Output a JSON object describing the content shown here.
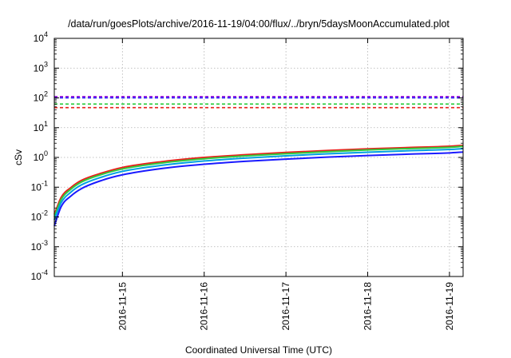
{
  "chart_data": {
    "type": "line",
    "title": "/data/run/goesPlots/archive/2016-11-19/04:00/flux/../bryn/5daysMoonAccumulated.plot",
    "xlabel": "Coordinated Universal Time (UTC)",
    "ylabel": "cSv",
    "y_scale": "log",
    "ylim": [
      0.0001,
      10000
    ],
    "xlim": [
      "2016-11-14T04:00",
      "2016-11-19T04:00"
    ],
    "grid": true,
    "y_ticks": [
      {
        "value": 0.0001,
        "base": "10",
        "exp": "-4"
      },
      {
        "value": 0.001,
        "base": "10",
        "exp": "-3"
      },
      {
        "value": 0.01,
        "base": "10",
        "exp": "-2"
      },
      {
        "value": 0.1,
        "base": "10",
        "exp": "-1"
      },
      {
        "value": 1,
        "base": "10",
        "exp": "0"
      },
      {
        "value": 10,
        "base": "10",
        "exp": "1"
      },
      {
        "value": 100,
        "base": "10",
        "exp": "2"
      },
      {
        "value": 1000,
        "base": "10",
        "exp": "3"
      },
      {
        "value": 10000,
        "base": "10",
        "exp": "4"
      }
    ],
    "x_ticks": [
      {
        "value": "2016-11-15T00:00",
        "label": "2016-11-15"
      },
      {
        "value": "2016-11-16T00:00",
        "label": "2016-11-16"
      },
      {
        "value": "2016-11-17T00:00",
        "label": "2016-11-17"
      },
      {
        "value": "2016-11-18T00:00",
        "label": "2016-11-18"
      },
      {
        "value": "2016-11-19T00:00",
        "label": "2016-11-19"
      }
    ],
    "reference_lines": [
      {
        "color": "#9400d3",
        "value": 110,
        "style": "dashed"
      },
      {
        "color": "#1a1aff",
        "value": 100,
        "style": "dashed"
      },
      {
        "color": "#2ecc40",
        "value": 62,
        "style": "dashed"
      },
      {
        "color": "#e8201a",
        "value": 47,
        "style": "dashed"
      }
    ],
    "series": [
      {
        "color": "#e8201a",
        "x": [
          "2016-11-14T04:00",
          "2016-11-14T06:00",
          "2016-11-14T09:00",
          "2016-11-14T12:00",
          "2016-11-14T18:00",
          "2016-11-15T00:00",
          "2016-11-15T12:00",
          "2016-11-16T00:00",
          "2016-11-16T12:00",
          "2016-11-17T00:00",
          "2016-11-17T12:00",
          "2016-11-18T00:00",
          "2016-11-18T12:00",
          "2016-11-19T00:00",
          "2016-11-19T04:00"
        ],
        "values": [
          0.012,
          0.045,
          0.1,
          0.17,
          0.3,
          0.46,
          0.73,
          1.0,
          1.23,
          1.47,
          1.7,
          1.95,
          2.15,
          2.38,
          2.55
        ]
      },
      {
        "color": "#2ecc40",
        "x": [
          "2016-11-14T04:00",
          "2016-11-14T06:00",
          "2016-11-14T09:00",
          "2016-11-14T12:00",
          "2016-11-14T18:00",
          "2016-11-15T00:00",
          "2016-11-15T12:00",
          "2016-11-16T00:00",
          "2016-11-16T12:00",
          "2016-11-17T00:00",
          "2016-11-17T12:00",
          "2016-11-18T00:00",
          "2016-11-18T12:00",
          "2016-11-19T00:00",
          "2016-11-19T04:00"
        ],
        "values": [
          0.01,
          0.038,
          0.088,
          0.15,
          0.27,
          0.41,
          0.66,
          0.9,
          1.12,
          1.33,
          1.55,
          1.78,
          1.98,
          2.18,
          2.35
        ]
      },
      {
        "color": "#00a0e0",
        "x": [
          "2016-11-14T04:00",
          "2016-11-14T06:00",
          "2016-11-14T09:00",
          "2016-11-14T12:00",
          "2016-11-14T18:00",
          "2016-11-15T00:00",
          "2016-11-15T12:00",
          "2016-11-16T00:00",
          "2016-11-16T12:00",
          "2016-11-17T00:00",
          "2016-11-17T12:00",
          "2016-11-18T00:00",
          "2016-11-18T12:00",
          "2016-11-19T00:00",
          "2016-11-19T04:00"
        ],
        "values": [
          0.008,
          0.03,
          0.07,
          0.12,
          0.22,
          0.34,
          0.55,
          0.76,
          0.95,
          1.13,
          1.32,
          1.5,
          1.68,
          1.85,
          1.98
        ]
      },
      {
        "color": "#1a1aff",
        "x": [
          "2016-11-14T04:00",
          "2016-11-14T06:00",
          "2016-11-14T09:00",
          "2016-11-14T12:00",
          "2016-11-14T18:00",
          "2016-11-15T00:00",
          "2016-11-15T12:00",
          "2016-11-16T00:00",
          "2016-11-16T12:00",
          "2016-11-17T00:00",
          "2016-11-17T12:00",
          "2016-11-18T00:00",
          "2016-11-18T12:00",
          "2016-11-19T00:00",
          "2016-11-19T04:00"
        ],
        "values": [
          0.005,
          0.022,
          0.052,
          0.09,
          0.17,
          0.26,
          0.43,
          0.59,
          0.74,
          0.88,
          1.02,
          1.16,
          1.29,
          1.42,
          1.52
        ]
      }
    ]
  }
}
